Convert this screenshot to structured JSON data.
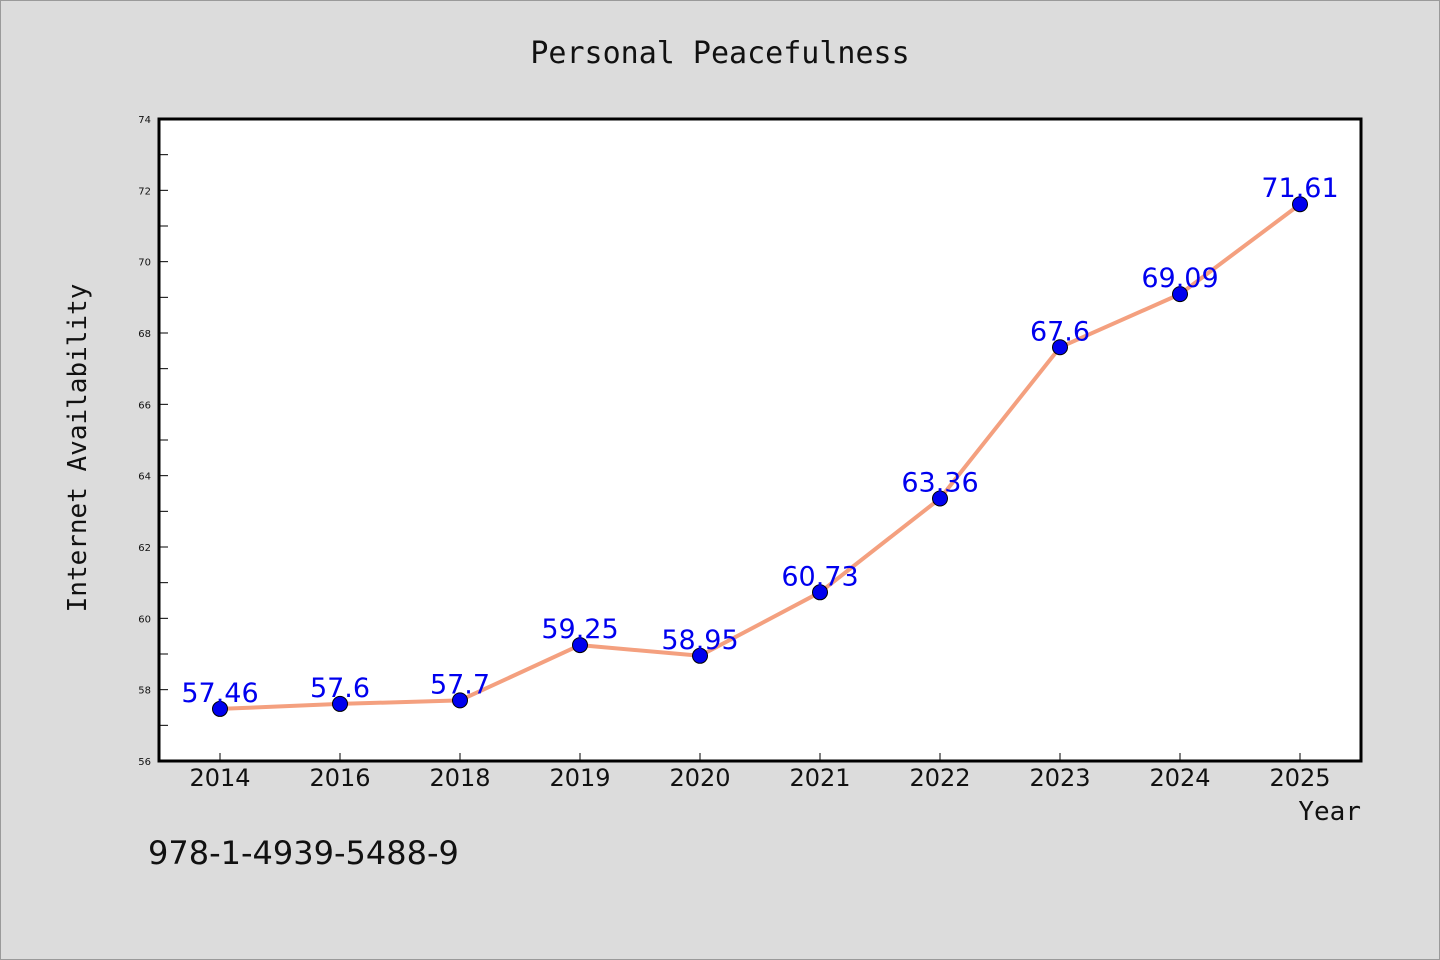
{
  "chart_data": {
    "type": "line",
    "title": "Personal Peacefulness",
    "xlabel": "Year",
    "ylabel": "Internet Availability",
    "categories": [
      "2014",
      "2016",
      "2018",
      "2019",
      "2020",
      "2021",
      "2022",
      "2023",
      "2024",
      "2025"
    ],
    "values": [
      57.46,
      57.6,
      57.7,
      59.25,
      58.95,
      60.73,
      63.36,
      67.6,
      69.09,
      71.61
    ],
    "data_labels": [
      "57.46",
      "57.6",
      "57.7",
      "59.25",
      "58.95",
      "60.73",
      "63.36",
      "67.6",
      "69.09",
      "71.61"
    ],
    "ylim": [
      56,
      74
    ],
    "yticks": [
      56,
      58,
      60,
      62,
      64,
      66,
      68,
      70,
      72,
      74
    ],
    "grid": false,
    "line_color": "#f4a07f",
    "marker_color": "#0000ee",
    "label_color": "#0000ee",
    "background": "#dcdcdc",
    "plot_background": "#ffffff"
  },
  "footer": {
    "text": "978-1-4939-5488-9"
  }
}
